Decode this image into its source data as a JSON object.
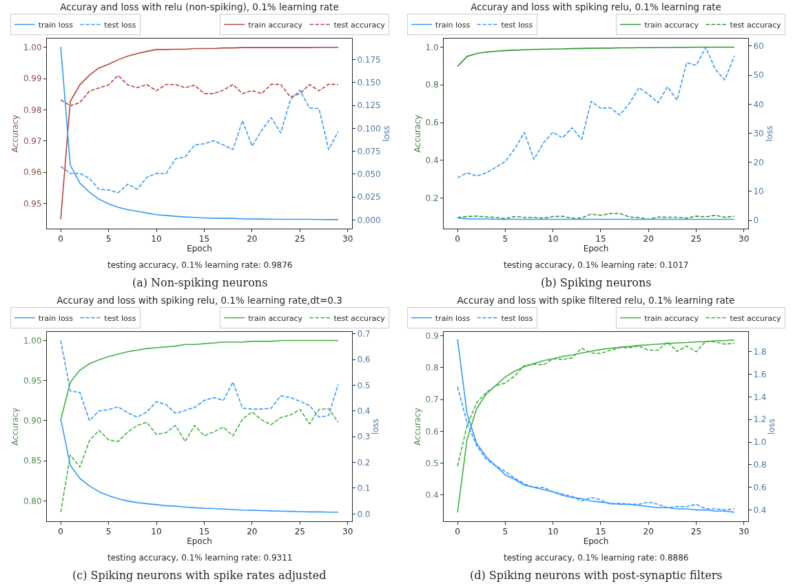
{
  "chart_data": [
    {
      "type": "line",
      "title": "Accuray and loss with relu (non-spiking), 0.1% learning rate",
      "xlabel": "Epoch",
      "ylabel": "Accuracy",
      "y2label": "loss",
      "x": [
        0,
        1,
        2,
        3,
        4,
        5,
        6,
        7,
        8,
        9,
        10,
        11,
        12,
        13,
        14,
        15,
        16,
        17,
        18,
        19,
        20,
        21,
        22,
        23,
        24,
        25,
        26,
        27,
        28,
        29
      ],
      "xlim": [
        -1.45,
        30.45
      ],
      "xticks": [
        0,
        5,
        10,
        15,
        20,
        25,
        30
      ],
      "ylim": [
        0.942,
        1.0028
      ],
      "yticks": [
        0.95,
        0.96,
        0.97,
        0.98,
        0.99,
        {
          "value": 1,
          "label": "1.00"
        }
      ],
      "y2lim": [
        -0.0094,
        0.198
      ],
      "y2ticks": [
        {
          "value": 0,
          "label": "0.000"
        },
        0.025,
        {
          "value": 0.05,
          "label": "0.050"
        },
        0.075,
        {
          "value": 0.1,
          "label": "0.100"
        },
        0.125,
        {
          "value": 0.15,
          "label": "0.150"
        },
        0.175
      ],
      "legend": "top",
      "series": [
        {
          "name": "train loss",
          "color": "#3399ff",
          "axis": "y2",
          "line_style": "solid",
          "values": [
            0.1891,
            0.06,
            0.0403,
            0.0303,
            0.0227,
            0.0177,
            0.0139,
            0.0113,
            0.0096,
            0.0076,
            0.0058,
            0.005,
            0.004,
            0.0033,
            0.0028,
            0.0023,
            0.002,
            0.002,
            0.0018,
            0.0013,
            0.001,
            0.001,
            0.0009,
            0.0008,
            0.0008,
            0.0007,
            0.0007,
            0.0006,
            0.0005,
            0.0005
          ]
        },
        {
          "name": "test loss",
          "color": "#3399ff",
          "axis": "y2",
          "line_style": "dashed",
          "values": [
            0.0585,
            0.0509,
            0.0509,
            0.0454,
            0.0335,
            0.0328,
            0.0298,
            0.0391,
            0.0335,
            0.0466,
            0.0509,
            0.0504,
            0.0668,
            0.0688,
            0.0819,
            0.0832,
            0.0865,
            0.0819,
            0.0769,
            0.1084,
            0.0807,
            0.0978,
            0.1117,
            0.0951,
            0.1311,
            0.1417,
            0.1223,
            0.1215,
            0.0769,
            0.0966
          ]
        },
        {
          "name": "train accuracy",
          "color": "#b8433f",
          "axis": "y",
          "line_style": "solid",
          "values": [
            0.945,
            0.9827,
            0.988,
            0.9911,
            0.9934,
            0.9946,
            0.996,
            0.9972,
            0.998,
            0.9987,
            0.9993,
            0.9993,
            0.9994,
            0.9994,
            0.9996,
            0.9996,
            0.9996,
            0.9998,
            0.9998,
            0.9999,
            0.9999,
            0.9999,
            0.9999,
            0.9999,
            0.9999,
            0.9999,
            0.9999,
            1.0,
            1.0,
            1.0
          ]
        },
        {
          "name": "test accuracy",
          "color": "#b8433f",
          "axis": "y",
          "line_style": "dashed",
          "values": [
            0.9832,
            0.9813,
            0.9823,
            0.986,
            0.987,
            0.988,
            0.991,
            0.988,
            0.9871,
            0.9881,
            0.9861,
            0.9881,
            0.9881,
            0.9871,
            0.9879,
            0.9852,
            0.9852,
            0.9863,
            0.9881,
            0.9852,
            0.9862,
            0.9852,
            0.9882,
            0.9881,
            0.9841,
            0.9852,
            0.9881,
            0.9861,
            0.9882,
            0.9881
          ]
        }
      ],
      "annotations": [
        "testing accuracy, 0.1% learning rate: 0.9876",
        "(a) Non-spiking neurons"
      ]
    },
    {
      "type": "line",
      "title": "Accuray and loss with spiking relu, 0.1% learning rate",
      "xlabel": "Epoch",
      "ylabel": "Accuracy",
      "y2label": "loss",
      "x": [
        0,
        1,
        2,
        3,
        4,
        5,
        6,
        7,
        8,
        9,
        10,
        11,
        12,
        13,
        14,
        15,
        16,
        17,
        18,
        19,
        20,
        21,
        22,
        23,
        24,
        25,
        26,
        27,
        28,
        29
      ],
      "xlim": [
        -1.45,
        30.45
      ],
      "xticks": [
        0,
        5,
        10,
        15,
        20,
        25,
        30
      ],
      "ylim": [
        0.0378,
        1.0455
      ],
      "yticks": [
        0.2,
        0.4,
        0.6,
        0.8,
        {
          "value": 1,
          "label": "1.0"
        }
      ],
      "y2lim": [
        -2.8,
        62.6
      ],
      "y2ticks": [
        0,
        10,
        20,
        30,
        40,
        50,
        60
      ],
      "legend": "top",
      "series": [
        {
          "name": "train loss",
          "color": "#3399ff",
          "axis": "y2",
          "line_style": "solid",
          "values": [
            0.8,
            0.6,
            0.5,
            0.5,
            0.4,
            0.4,
            0.4,
            0.4,
            0.4,
            0.4,
            0.4,
            0.4,
            0.4,
            0.4,
            0.4,
            0.4,
            0.4,
            0.4,
            0.4,
            0.4,
            0.4,
            0.4,
            0.4,
            0.4,
            0.4,
            0.4,
            0.4,
            0.4,
            0.4,
            0.4
          ]
        },
        {
          "name": "test loss",
          "color": "#3399ff",
          "axis": "y2",
          "line_style": "dashed",
          "values": [
            14.7,
            16.4,
            15.3,
            16.4,
            18.3,
            20.3,
            24.7,
            30.3,
            21.0,
            26.7,
            30.4,
            28.4,
            31.9,
            27.9,
            41.0,
            38.6,
            38.8,
            36.3,
            40.3,
            45.7,
            43.4,
            40.5,
            46.0,
            41.4,
            54.3,
            53.4,
            59.6,
            52.0,
            48.4,
            56.6
          ]
        },
        {
          "name": "train accuracy",
          "color": "#2b982b",
          "axis": "y",
          "line_style": "solid",
          "values": [
            0.898,
            0.951,
            0.966,
            0.974,
            0.978,
            0.982,
            0.984,
            0.986,
            0.988,
            0.989,
            0.99,
            0.991,
            0.992,
            0.993,
            0.994,
            0.995,
            0.995,
            0.996,
            0.996,
            0.997,
            0.997,
            0.998,
            0.998,
            0.999,
            0.999,
            1.0,
            1.0,
            1.0,
            1.0,
            1.0
          ]
        },
        {
          "name": "test accuracy",
          "color": "#2b982b",
          "axis": "y",
          "line_style": "dashed",
          "values": [
            0.097,
            0.102,
            0.104,
            0.1,
            0.097,
            0.091,
            0.102,
            0.097,
            0.097,
            0.093,
            0.102,
            0.103,
            0.093,
            0.094,
            0.115,
            0.108,
            0.118,
            0.118,
            0.099,
            0.097,
            0.087,
            0.099,
            0.098,
            0.098,
            0.093,
            0.104,
            0.1,
            0.108,
            0.098,
            0.103
          ]
        }
      ],
      "annotations": [
        "testing accuracy, 0.1% learning rate: 0.1017",
        "(b) Spiking neurons"
      ]
    },
    {
      "type": "line",
      "title": "Accuray and loss with spiking relu, 0.1% learning rate,dt=0.3",
      "xlabel": "Epoch",
      "ylabel": "Accuracy",
      "y2label": "loss",
      "x": [
        0,
        1,
        2,
        3,
        4,
        5,
        6,
        7,
        8,
        9,
        10,
        11,
        12,
        13,
        14,
        15,
        16,
        17,
        18,
        19,
        20,
        21,
        22,
        23,
        24,
        25,
        26,
        27,
        28,
        29
      ],
      "xlim": [
        -1.45,
        30.45
      ],
      "xticks": [
        0,
        5,
        10,
        15,
        20,
        25,
        30
      ],
      "ylim": [
        0.7745,
        1.0107
      ],
      "yticks": [
        {
          "value": 0.8,
          "label": "0.80"
        },
        0.85,
        {
          "value": 0.9,
          "label": "0.90"
        },
        0.95,
        {
          "value": 1,
          "label": "1.00"
        }
      ],
      "y2lim": [
        -0.0285,
        0.707
      ],
      "y2ticks": [
        {
          "value": 0,
          "label": "0.0"
        },
        0.1,
        0.2,
        0.3,
        0.4,
        0.5,
        0.6,
        0.7
      ],
      "legend": "top",
      "series": [
        {
          "name": "train loss",
          "color": "#3399ff",
          "axis": "y2",
          "line_style": "solid",
          "values": [
            0.369,
            0.189,
            0.138,
            0.109,
            0.086,
            0.071,
            0.059,
            0.05,
            0.044,
            0.04,
            0.036,
            0.032,
            0.03,
            0.027,
            0.024,
            0.022,
            0.021,
            0.019,
            0.017,
            0.015,
            0.014,
            0.013,
            0.012,
            0.011,
            0.01,
            0.009,
            0.008,
            0.008,
            0.007,
            0.007
          ]
        },
        {
          "name": "test loss",
          "color": "#3399ff",
          "axis": "y2",
          "line_style": "dashed",
          "values": [
            0.674,
            0.477,
            0.472,
            0.363,
            0.4,
            0.405,
            0.416,
            0.393,
            0.376,
            0.396,
            0.436,
            0.425,
            0.391,
            0.402,
            0.414,
            0.441,
            0.452,
            0.441,
            0.512,
            0.411,
            0.407,
            0.407,
            0.411,
            0.459,
            0.452,
            0.438,
            0.421,
            0.376,
            0.382,
            0.504
          ]
        },
        {
          "name": "train accuracy",
          "color": "#40b040",
          "axis": "y",
          "line_style": "solid",
          "values": [
            0.901,
            0.948,
            0.963,
            0.971,
            0.976,
            0.98,
            0.983,
            0.986,
            0.988,
            0.99,
            0.991,
            0.992,
            0.993,
            0.995,
            0.995,
            0.996,
            0.997,
            0.998,
            0.998,
            0.998,
            0.999,
            0.999,
            0.999,
            1.0,
            1.0,
            1.0,
            1.0,
            1.0,
            1.0,
            1.0
          ]
        },
        {
          "name": "test accuracy",
          "color": "#40b040",
          "axis": "y",
          "line_style": "dashed",
          "values": [
            0.786,
            0.857,
            0.842,
            0.875,
            0.888,
            0.876,
            0.874,
            0.886,
            0.894,
            0.898,
            0.883,
            0.885,
            0.894,
            0.874,
            0.894,
            0.881,
            0.886,
            0.892,
            0.881,
            0.902,
            0.911,
            0.901,
            0.895,
            0.904,
            0.907,
            0.914,
            0.896,
            0.914,
            0.915,
            0.898
          ]
        }
      ],
      "annotations": [
        "testing accuracy, 0.1% learning rate: 0.9311",
        "(c) Spiking neurons with spike rates adjusted"
      ]
    },
    {
      "type": "line",
      "title": "Accuray and loss with spike filtered relu, 0.1% learning rate",
      "xlabel": "Epoch",
      "ylabel": "Accuracy",
      "y2label": "loss",
      "x": [
        0,
        1,
        2,
        3,
        4,
        5,
        6,
        7,
        8,
        9,
        10,
        11,
        12,
        13,
        14,
        15,
        16,
        17,
        18,
        19,
        20,
        21,
        22,
        23,
        24,
        25,
        26,
        27,
        28,
        29
      ],
      "xlim": [
        -1.45,
        30.45
      ],
      "xticks": [
        0,
        5,
        10,
        15,
        20,
        25,
        30
      ],
      "ylim": [
        0.317,
        0.9125
      ],
      "yticks": [
        0.4,
        0.5,
        0.6,
        0.7,
        0.8,
        0.9
      ],
      "y2lim": [
        0.3,
        1.975
      ],
      "y2ticks": [
        0.4,
        0.6,
        0.8,
        {
          "value": 1,
          "label": "1.0"
        },
        1.2,
        1.4,
        1.6,
        1.8
      ],
      "legend": "top",
      "series": [
        {
          "name": "train loss",
          "color": "#3399ff",
          "axis": "y2",
          "line_style": "solid",
          "values": [
            1.91,
            1.25,
            0.99,
            0.87,
            0.79,
            0.71,
            0.67,
            0.62,
            0.6,
            0.58,
            0.56,
            0.53,
            0.51,
            0.5,
            0.48,
            0.47,
            0.46,
            0.45,
            0.45,
            0.44,
            0.43,
            0.42,
            0.42,
            0.41,
            0.41,
            0.4,
            0.4,
            0.39,
            0.39,
            0.38
          ]
        },
        {
          "name": "test loss",
          "color": "#3399ff",
          "axis": "y2",
          "line_style": "dashed",
          "values": [
            1.49,
            1.17,
            0.97,
            0.85,
            0.79,
            0.74,
            0.68,
            0.63,
            0.6,
            0.6,
            0.56,
            0.54,
            0.52,
            0.48,
            0.51,
            0.49,
            0.45,
            0.46,
            0.45,
            0.45,
            0.47,
            0.45,
            0.42,
            0.43,
            0.43,
            0.45,
            0.41,
            0.41,
            0.4,
            0.41
          ]
        },
        {
          "name": "train accuracy",
          "color": "#40b040",
          "axis": "y",
          "line_style": "solid",
          "values": [
            0.345,
            0.575,
            0.671,
            0.717,
            0.744,
            0.771,
            0.789,
            0.803,
            0.813,
            0.822,
            0.828,
            0.835,
            0.84,
            0.846,
            0.852,
            0.857,
            0.861,
            0.864,
            0.867,
            0.87,
            0.872,
            0.874,
            0.876,
            0.878,
            0.879,
            0.881,
            0.882,
            0.885,
            0.885,
            0.887
          ]
        },
        {
          "name": "test accuracy",
          "color": "#40b040",
          "axis": "y",
          "line_style": "dashed",
          "values": [
            0.49,
            0.618,
            0.69,
            0.722,
            0.743,
            0.752,
            0.774,
            0.807,
            0.811,
            0.809,
            0.828,
            0.826,
            0.831,
            0.861,
            0.846,
            0.845,
            0.855,
            0.863,
            0.863,
            0.868,
            0.855,
            0.855,
            0.881,
            0.851,
            0.868,
            0.85,
            0.883,
            0.881,
            0.874,
            0.877
          ]
        }
      ],
      "annotations": [
        "testing accuracy, 0.1% learning rate: 0.8886",
        "(d) Spiking neurons with post-synaptic filters"
      ]
    }
  ]
}
